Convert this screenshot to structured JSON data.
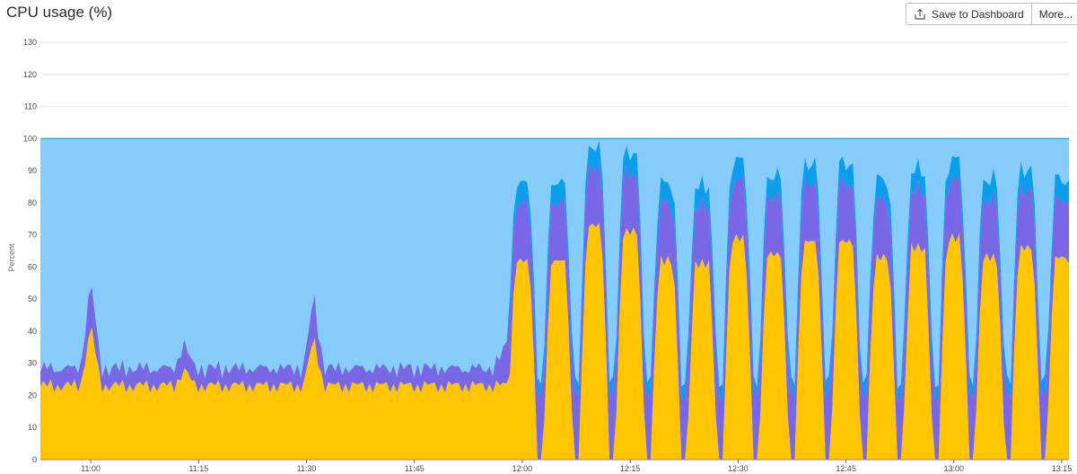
{
  "header": {
    "title": "CPU usage (%)",
    "save_label": "Save to Dashboard",
    "more_label": "More..."
  },
  "icons": {
    "save": "export-icon"
  },
  "colors": {
    "idle": "#86CDFB",
    "system": "#0A9EEC",
    "user": "#7A67E6",
    "steal": "#FFC500",
    "limit": "#1B9BE0"
  },
  "chart_data": {
    "type": "area",
    "title": "CPU usage (%)",
    "ylabel": "Percent",
    "ylim": [
      0,
      130
    ],
    "yticks": [
      0,
      10,
      20,
      30,
      40,
      50,
      60,
      70,
      80,
      90,
      100,
      110,
      120,
      130
    ],
    "xticks": [
      "11:00",
      "11:15",
      "11:30",
      "11:45",
      "12:00",
      "12:15",
      "12:30",
      "12:45",
      "13:00",
      "13:15"
    ],
    "x_range": [
      "10:53",
      "13:16"
    ],
    "stacked": true,
    "grid": true,
    "total": 100,
    "phase_1": {
      "x_range": [
        "10:53",
        "11:58"
      ],
      "series": [
        {
          "level": 23
        },
        {
          "level": 4
        },
        {
          "level": 0
        }
      ],
      "spikes": [
        {
          "x": "11:00",
          "values": [
            42,
            13,
            0
          ]
        },
        {
          "x": "11:31",
          "values": [
            38,
            12,
            0
          ]
        },
        {
          "x": "11:13",
          "values": [
            28,
            7,
            0
          ]
        }
      ]
    },
    "phase_2": {
      "x_range": [
        "11:58",
        "13:16"
      ],
      "cycle": {
        "high_values": [
          60,
          18,
          5
        ],
        "low_values": [
          0,
          20,
          3
        ]
      },
      "peaks": [
        "12:00",
        "12:05",
        "12:10",
        "12:15",
        "12:20",
        "12:25",
        "12:30",
        "12:35",
        "12:40",
        "12:45",
        "12:50",
        "12:55",
        "13:00",
        "13:05",
        "13:10",
        "13:15"
      ],
      "peak_heights": [
        62,
        62,
        73,
        71,
        62,
        61,
        69,
        64,
        68,
        68,
        63,
        66,
        69,
        63,
        66,
        63
      ]
    }
  }
}
